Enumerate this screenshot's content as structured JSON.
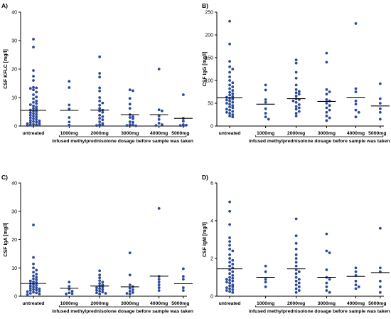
{
  "colors": {
    "point": "#2d4a9b",
    "axis": "#000000",
    "median": "#000000"
  },
  "panel_layout": [
    "top-left",
    "top-right",
    "bottom-left",
    "bottom-right"
  ],
  "chart_data": [
    {
      "type": "scatter",
      "panel": "A)",
      "title": "",
      "ylabel": "CSF KFLC [mg/l]",
      "ylim": [
        0,
        40
      ],
      "yticks": [
        0,
        10,
        20,
        30,
        40
      ],
      "categories": [
        "untreated",
        "1000mg",
        "2000mg",
        "3000mg",
        "4000mg",
        "5000mg"
      ],
      "group_label": "infused methylprednisolone dosage before sample was taken",
      "medians": [
        5.5,
        5.5,
        5.6,
        4.0,
        4.0,
        2.7
      ],
      "points": [
        [
          30.5,
          27.7,
          19.5,
          17.5,
          16.0,
          13.6,
          13.4,
          13.2,
          12.7,
          11.9,
          11.0,
          10.2,
          9.6,
          8.8,
          8.3,
          7.9,
          7.5,
          7.1,
          6.7,
          6.2,
          5.9,
          5.6,
          5.3,
          5.0,
          4.7,
          4.4,
          4.1,
          3.8,
          3.5,
          3.2,
          2.9,
          2.6,
          2.3,
          2.0,
          1.8,
          1.6,
          1.4,
          1.2,
          1.0,
          0.8,
          0.6,
          0.5,
          0.4,
          0.3,
          0.2
        ],
        [
          15.7,
          13.5,
          7.4,
          6.0,
          3.0,
          1.4,
          0.3
        ],
        [
          24.3,
          18.5,
          17.2,
          13.4,
          12.3,
          10.0,
          8.8,
          8.1,
          7.3,
          6.2,
          5.6,
          5.3,
          4.8,
          3.8,
          3.3,
          2.7,
          2.2,
          1.5,
          0.9,
          0.5,
          0.3,
          0.2
        ],
        [
          12.7,
          12.4,
          9.7,
          7.7,
          6.2,
          4.0,
          3.3,
          3.0,
          2.6,
          1.5,
          1.3,
          0.5,
          0.4,
          0.2,
          0.1
        ],
        [
          20.0,
          5.7,
          5.3,
          3.5,
          2.3,
          1.0,
          0.5,
          0.2
        ],
        [
          11.0,
          2.7,
          1.7,
          0.5,
          0.3,
          0.2
        ]
      ]
    },
    {
      "type": "scatter",
      "panel": "B)",
      "title": "",
      "ylabel": "CSF IgG [mg/l]",
      "ylim": [
        0,
        250
      ],
      "yticks": [
        0,
        50,
        100,
        150,
        200,
        250
      ],
      "categories": [
        "untreated",
        "1000mg",
        "2000mg",
        "3000mg",
        "4000mg",
        "5000mg"
      ],
      "group_label": "infused methylprednisolone dosage before sample was taken",
      "medians": [
        62,
        48,
        60,
        54,
        63,
        44
      ],
      "points": [
        [
          230,
          180,
          142,
          130,
          125,
          118,
          108,
          100,
          95,
          90,
          86,
          82,
          78,
          74,
          71,
          68,
          65,
          63,
          61,
          59,
          57,
          55,
          52,
          50,
          48,
          45,
          42,
          40,
          37,
          35,
          32,
          30,
          28,
          25,
          22,
          20
        ],
        [
          90,
          79,
          58,
          52,
          38,
          28,
          20,
          15
        ],
        [
          145,
          138,
          118,
          105,
          90,
          80,
          76,
          73,
          70,
          66,
          60,
          58,
          55,
          52,
          47,
          43,
          40,
          37,
          32,
          28,
          22
        ],
        [
          160,
          140,
          80,
          75,
          70,
          58,
          55,
          50,
          45,
          40,
          35,
          30,
          22,
          18,
          12
        ],
        [
          225,
          82,
          75,
          55,
          48,
          35,
          30,
          20
        ],
        [
          93,
          60,
          50,
          38,
          30,
          15
        ]
      ]
    },
    {
      "type": "scatter",
      "panel": "C)",
      "title": "",
      "ylabel": "CSF IgA [mg/l]",
      "ylim": [
        0,
        40
      ],
      "yticks": [
        0,
        10,
        20,
        30,
        40
      ],
      "categories": [
        "untreated",
        "1000mg",
        "2000mg",
        "3000mg",
        "4000mg",
        "5000mg"
      ],
      "group_label": "infused methylprednisolone dosage before sample was taken",
      "medians": [
        4.5,
        2.8,
        3.6,
        3.3,
        7.1,
        4.4
      ],
      "points": [
        [
          25.2,
          13.7,
          11.4,
          10.0,
          9.2,
          8.5,
          7.8,
          7.2,
          6.7,
          6.2,
          5.8,
          5.4,
          5.1,
          4.8,
          4.5,
          4.2,
          3.9,
          3.6,
          3.3,
          3.0,
          2.8,
          2.6,
          2.4,
          2.2,
          2.0,
          1.8,
          1.6,
          1.4,
          1.2,
          1.0,
          0.8,
          0.6
        ],
        [
          5.0,
          3.5,
          2.5,
          1.8,
          1.2,
          0.9,
          0.8
        ],
        [
          9.0,
          7.5,
          6.5,
          5.5,
          5.0,
          4.5,
          4.0,
          3.6,
          3.3,
          3.0,
          2.7,
          2.4,
          2.1,
          1.8,
          1.5,
          1.2,
          1.0,
          0.8
        ],
        [
          15.3,
          7.5,
          4.0,
          3.4,
          2.8,
          2.3,
          1.8,
          1.3,
          1.0,
          0.8
        ],
        [
          31.0,
          7.0,
          6.0,
          5.0,
          4.0,
          3.0,
          2.0
        ],
        [
          9.7,
          7.0,
          6.0,
          3.0,
          2.0
        ]
      ]
    },
    {
      "type": "scatter",
      "panel": "D)",
      "title": "",
      "ylabel": "CSF IgM [mg/l]",
      "ylim": [
        0,
        6
      ],
      "yticks": [
        0,
        2,
        4,
        6
      ],
      "categories": [
        "untreated",
        "1000mg",
        "2000mg",
        "3000mg",
        "4000mg",
        "5000mg"
      ],
      "group_label": "infused methylprednisolone dosage before sample was taken",
      "medians": [
        1.45,
        1.0,
        1.45,
        1.0,
        1.05,
        1.25
      ],
      "points": [
        [
          5.0,
          4.5,
          3.8,
          3.1,
          2.9,
          2.7,
          2.5,
          2.4,
          2.2,
          2.0,
          1.9,
          1.8,
          1.7,
          1.6,
          1.5,
          1.4,
          1.3,
          1.2,
          1.1,
          1.0,
          0.95,
          0.9,
          0.85,
          0.8,
          0.75,
          0.7,
          0.6,
          0.55,
          0.5,
          0.45,
          0.4,
          0.35,
          0.3,
          0.25,
          0.2
        ],
        [
          1.6,
          1.3,
          0.9,
          0.75,
          0.5
        ],
        [
          4.1,
          3.2,
          2.8,
          2.5,
          2.2,
          2.0,
          1.8,
          1.6,
          1.4,
          1.3,
          1.2,
          1.0,
          0.9,
          0.8,
          0.7,
          0.6,
          0.5,
          0.4,
          0.3,
          0.2
        ],
        [
          3.3,
          2.4,
          2.3,
          1.4,
          1.0,
          0.9,
          0.7,
          0.5,
          0.3,
          0.2
        ],
        [
          1.5,
          1.3,
          1.1,
          0.8,
          0.6,
          0.5,
          0.4
        ],
        [
          3.6,
          1.5,
          1.3,
          0.8,
          0.5,
          0.2
        ]
      ]
    }
  ]
}
